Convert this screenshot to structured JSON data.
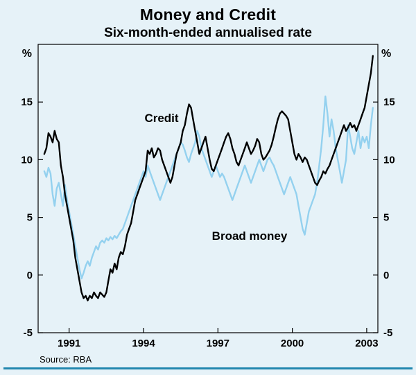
{
  "header": {
    "title": "Money and Credit",
    "subtitle": "Six-month-ended annualised rate"
  },
  "footer": {
    "source": "Source: RBA"
  },
  "axis": {
    "unit_left": "%",
    "unit_right": "%"
  },
  "series_labels": {
    "credit": "Credit",
    "broad_money": "Broad money"
  },
  "colors": {
    "background": "#e6f2f8",
    "credit_line": "#000000",
    "broad_money_line": "#94d1ef",
    "bottom_rule": "#2187ae",
    "axis_stroke": "#000000"
  },
  "chart_data": {
    "type": "line",
    "title": "Money and Credit",
    "subtitle": "Six-month-ended annualised rate",
    "ylabel": "%",
    "ylim": [
      -5,
      20
    ],
    "xlim": [
      1989.75,
      2003.45
    ],
    "y_ticks": [
      -5,
      0,
      5,
      10,
      15
    ],
    "x_ticks": [
      1991,
      1994,
      1997,
      2000,
      2003
    ],
    "grid": false,
    "legend_position": "inline-annotations",
    "source": "Source: RBA",
    "x_start": 1990.0,
    "x_step_years": 0.0833333,
    "series": [
      {
        "name": "Credit",
        "color": "#000000",
        "values": [
          10.5,
          11,
          12.3,
          12,
          11.5,
          12.5,
          11.8,
          11.5,
          9.5,
          8.5,
          7,
          6,
          5,
          4,
          3,
          1.5,
          0.5,
          -0.5,
          -1.5,
          -2,
          -1.8,
          -2.2,
          -1.8,
          -2,
          -1.5,
          -1.8,
          -2,
          -1.5,
          -1.7,
          -1.9,
          -1.5,
          -0.5,
          0.5,
          0.2,
          1,
          0.5,
          1.5,
          2,
          1.8,
          2.5,
          3.5,
          4,
          4.5,
          5.5,
          6.5,
          7,
          7.5,
          8,
          8.5,
          9,
          10.8,
          10.5,
          11,
          10.2,
          10.5,
          11,
          10.8,
          10,
          9.5,
          9,
          8.5,
          8,
          8.5,
          9.5,
          10.5,
          11,
          11.5,
          12.5,
          13,
          14,
          14.8,
          14.5,
          13.5,
          12.5,
          11.5,
          10.5,
          11,
          11.5,
          12,
          11,
          10,
          9.2,
          9,
          9.5,
          10,
          10.5,
          11,
          11.5,
          12,
          12.3,
          11.8,
          11,
          10.5,
          9.8,
          9.5,
          10,
          10.5,
          11,
          11.5,
          11,
          10.5,
          10.8,
          11.2,
          11.8,
          11.5,
          10.5,
          10,
          10.2,
          10.5,
          10.8,
          11.3,
          12,
          12.8,
          13.5,
          14,
          14.2,
          14,
          13.8,
          13.5,
          12.5,
          11.5,
          10.5,
          10,
          10.5,
          10.2,
          9.8,
          10.2,
          10,
          9.5,
          9,
          8.5,
          8,
          7.8,
          8.2,
          8.5,
          9,
          8.8,
          9.2,
          9.5,
          10,
          10.5,
          11,
          11.5,
          12,
          12.5,
          13,
          12.5,
          12.8,
          13.2,
          12.8,
          13,
          12.5,
          13,
          13.5,
          14,
          14.5,
          15.5,
          16.5,
          17.5,
          19
        ]
      },
      {
        "name": "Broad money",
        "color": "#94d1ef",
        "values": [
          9,
          8.5,
          9.3,
          8.8,
          7,
          6,
          7.5,
          8,
          7,
          6,
          7.8,
          6.5,
          5.5,
          4.5,
          3.5,
          2.5,
          1.5,
          0.5,
          -0.3,
          0.2,
          0.8,
          1.2,
          0.8,
          1.5,
          2,
          2.5,
          2.2,
          2.8,
          3,
          2.8,
          3.2,
          3,
          3.3,
          3.1,
          3.4,
          3.2,
          3.5,
          3.8,
          4,
          4.5,
          5,
          5.5,
          6,
          6.5,
          7,
          7.5,
          8,
          8.5,
          9,
          8.5,
          9.5,
          9,
          8.5,
          8,
          7.5,
          7,
          6.5,
          7,
          7.5,
          8,
          8.5,
          9,
          9.5,
          10,
          10.5,
          11,
          11.5,
          11.3,
          10.8,
          10.2,
          9.8,
          10.5,
          11,
          11.5,
          12.5,
          12,
          11,
          10.5,
          10,
          9.5,
          9,
          8.5,
          9,
          9.5,
          9,
          8.5,
          8.8,
          8.5,
          8,
          7.5,
          7,
          6.5,
          7,
          7.5,
          8,
          8.5,
          9,
          9.5,
          9,
          8.5,
          8,
          8.5,
          9,
          9.5,
          10,
          9.5,
          9,
          9.5,
          10,
          10.2,
          9.8,
          9.5,
          9,
          8.5,
          8,
          7.5,
          7,
          7.5,
          8,
          8.5,
          8,
          7.5,
          7,
          6,
          5,
          4,
          3.5,
          4.5,
          5.5,
          6,
          6.5,
          7,
          8,
          9.5,
          11,
          13,
          15.5,
          14,
          12,
          13.5,
          12.5,
          11,
          10,
          9,
          8,
          9,
          10,
          13,
          12,
          11,
          10.5,
          11.5,
          12.5,
          11,
          12,
          11.5,
          12,
          11,
          13,
          14.5
        ]
      }
    ]
  }
}
